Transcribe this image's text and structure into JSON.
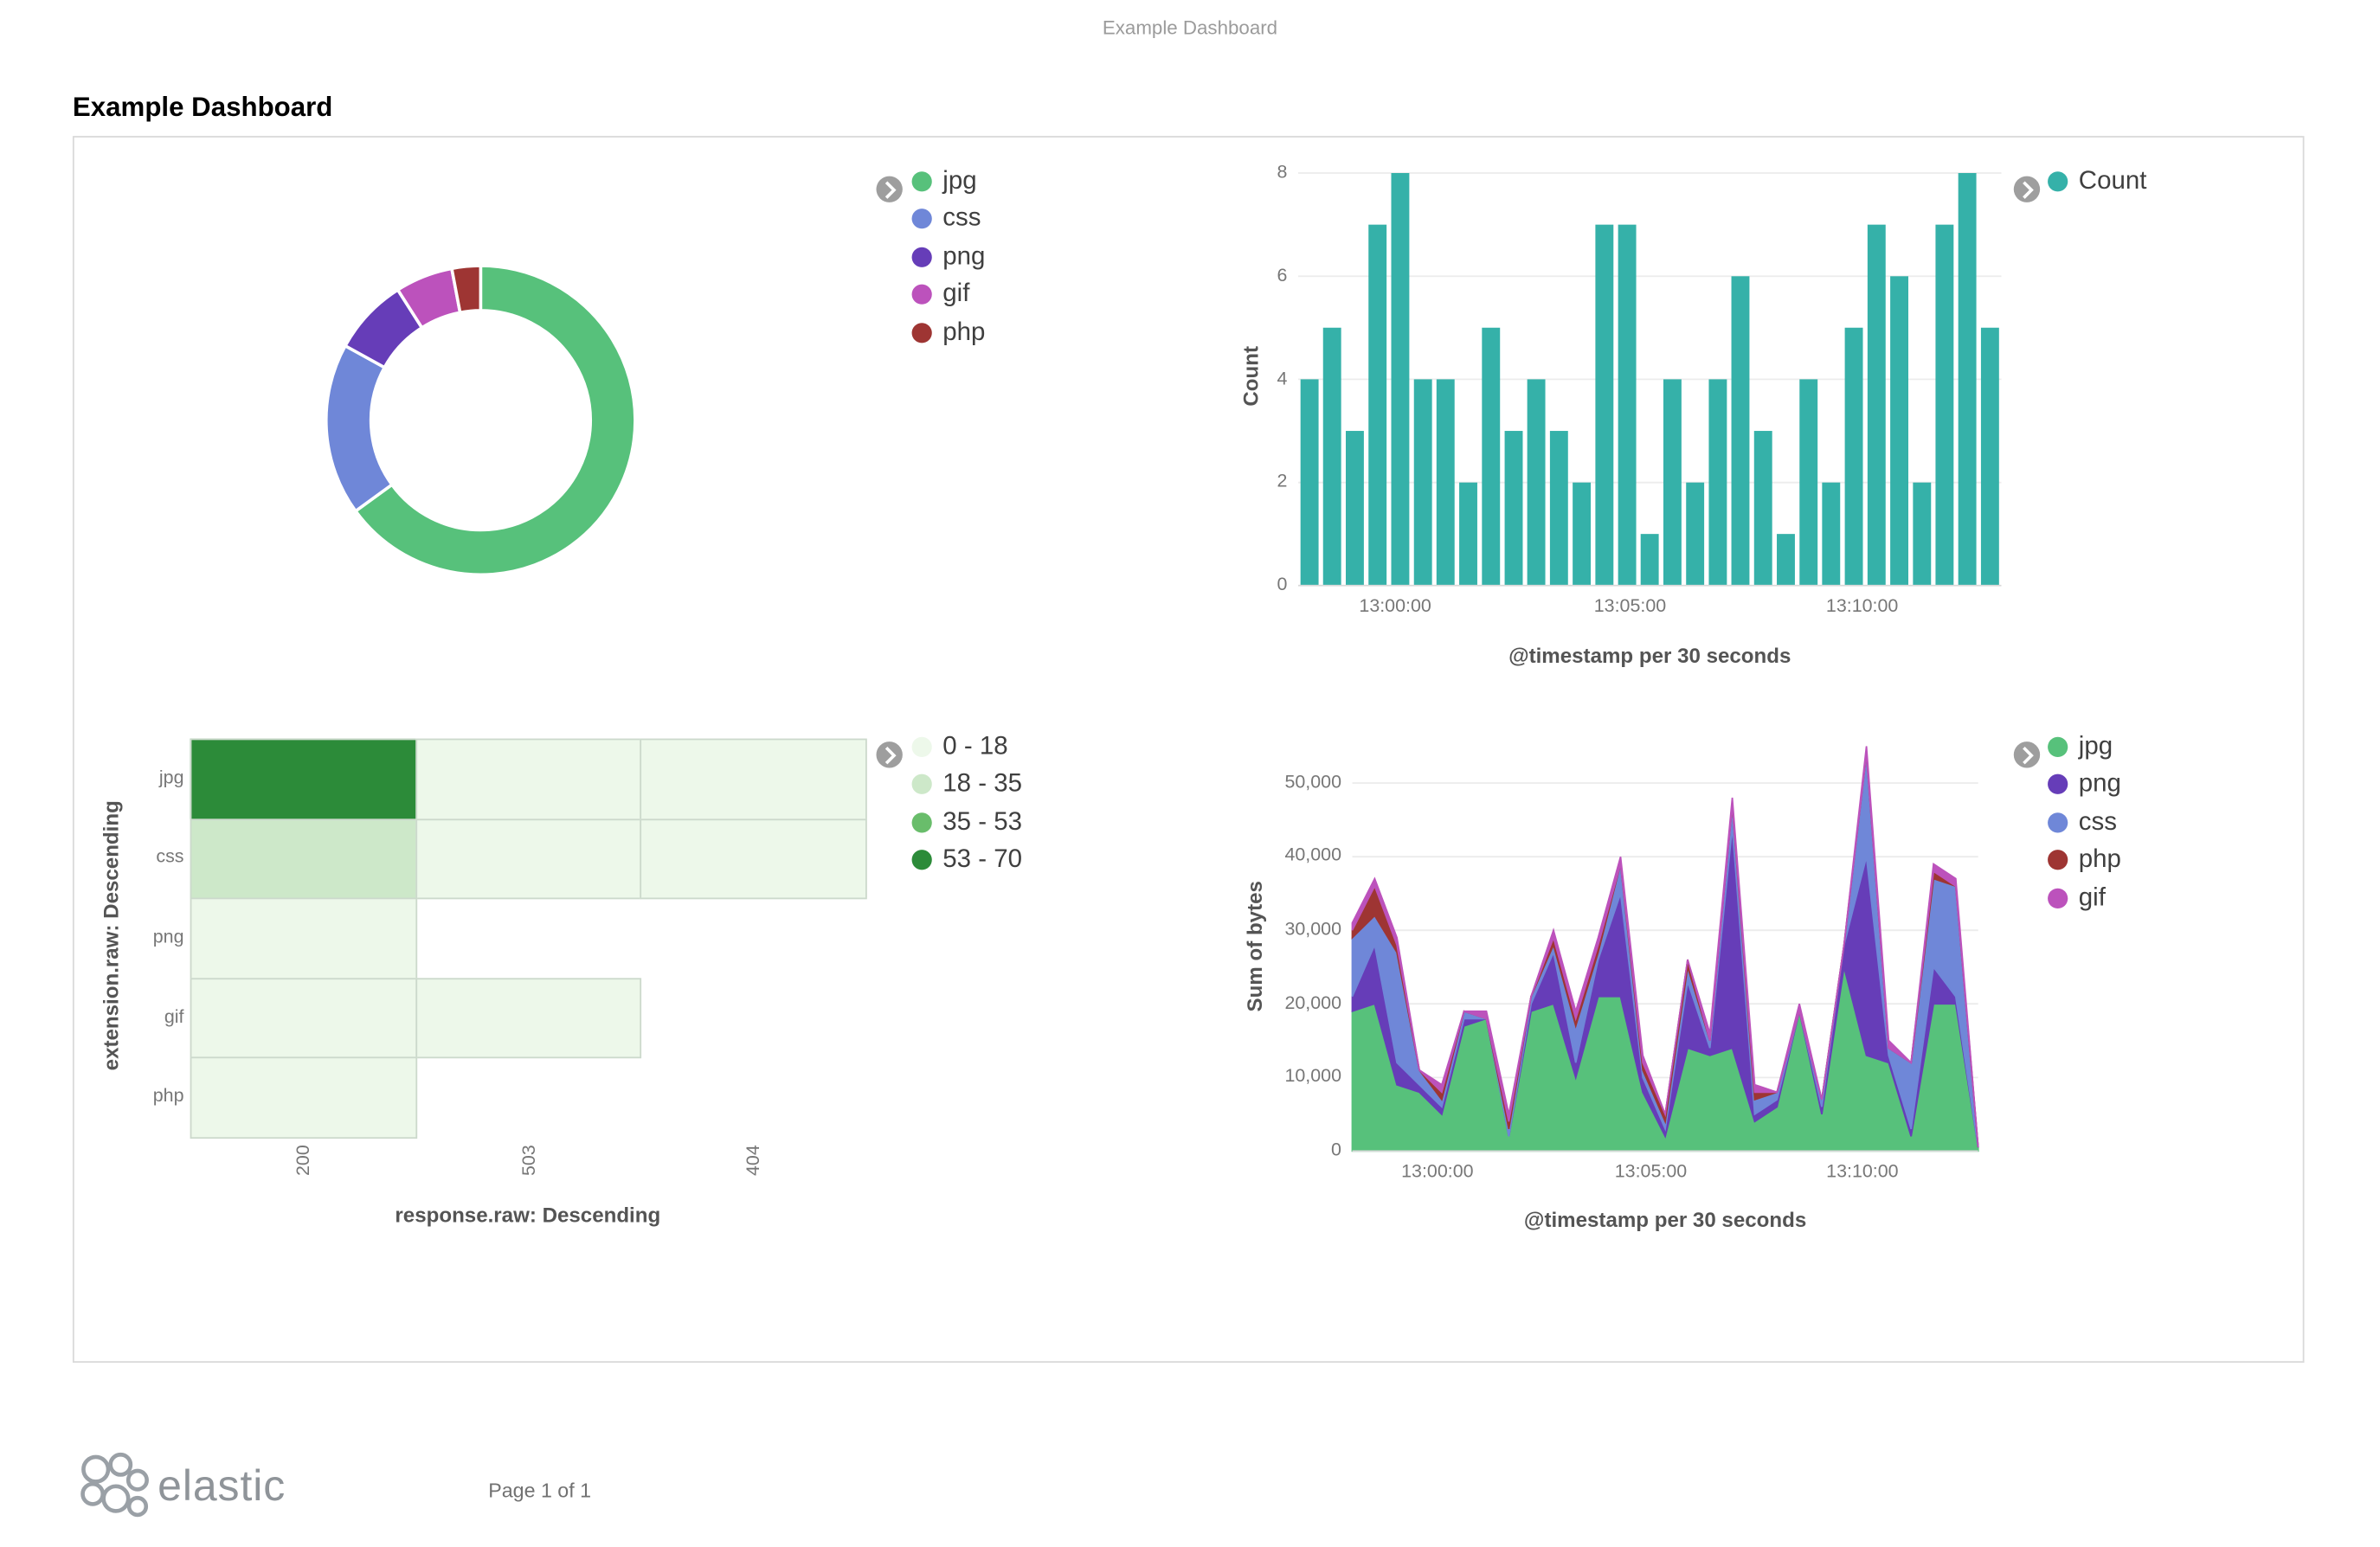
{
  "page": {
    "header_title": "Example Dashboard",
    "title": "Example Dashboard"
  },
  "footer": {
    "brand": "elastic",
    "page_info": "Page 1 of 1"
  },
  "chart_data": [
    {
      "id": "donut",
      "type": "pie",
      "labels": [
        "jpg",
        "css",
        "png",
        "gif",
        "php"
      ],
      "values": [
        65,
        18,
        8,
        6,
        3
      ],
      "colors": [
        "#57c17b",
        "#6f87d8",
        "#663db8",
        "#bc52bc",
        "#9e3533"
      ],
      "inner_radius_ratio": 0.71,
      "legend_position": "right"
    },
    {
      "id": "count-histogram",
      "type": "bar",
      "series_name": "Count",
      "color": "#35b1a9",
      "xlabel": "@timestamp per 30 seconds",
      "ylabel": "Count",
      "ylim": [
        0,
        8
      ],
      "yticks": [
        0,
        2,
        4,
        6,
        8
      ],
      "values": [
        4,
        5,
        3,
        7,
        8,
        4,
        4,
        2,
        5,
        3,
        4,
        3,
        2,
        7,
        7,
        1,
        4,
        2,
        4,
        6,
        3,
        1,
        4,
        2,
        5,
        7,
        6,
        2,
        7,
        8,
        5
      ],
      "x_ticks": [
        {
          "label": "13:00:00",
          "pos": 0.138
        },
        {
          "label": "13:05:00",
          "pos": 0.472
        },
        {
          "label": "13:10:00",
          "pos": 0.802
        }
      ],
      "legend_position": "right"
    },
    {
      "id": "heatmap",
      "type": "heatmap",
      "xlabel": "response.raw: Descending",
      "ylabel": "extension.raw: Descending",
      "rows": [
        "jpg",
        "css",
        "png",
        "gif",
        "php"
      ],
      "cols": [
        "200",
        "503",
        "404"
      ],
      "cells": [
        [
          60,
          5,
          4
        ],
        [
          30,
          8,
          6
        ],
        [
          6,
          null,
          null
        ],
        [
          5,
          3,
          null
        ],
        [
          2,
          null,
          null
        ]
      ],
      "buckets": {
        "labels": [
          "0 - 18",
          "18 - 35",
          "35 - 53",
          "53 - 70"
        ],
        "edges": [
          0,
          18,
          35,
          53,
          70
        ],
        "colors": [
          "#edf8ea",
          "#cde8c9",
          "#69bd6b",
          "#2c8b39"
        ]
      },
      "legend_position": "right"
    },
    {
      "id": "bytes-area",
      "type": "area",
      "stacked": true,
      "xlabel": "@timestamp per 30 seconds",
      "ylabel": "Sum of bytes",
      "ylim": [
        0,
        55000
      ],
      "yticks": [
        0,
        10000,
        20000,
        30000,
        40000,
        50000
      ],
      "ytick_labels": [
        "0",
        "10,000",
        "20,000",
        "30,000",
        "40,000",
        "50,000"
      ],
      "x_ticks": [
        {
          "label": "13:00:00",
          "pos": 0.136
        },
        {
          "label": "13:05:00",
          "pos": 0.477
        },
        {
          "label": "13:10:00",
          "pos": 0.815
        }
      ],
      "series": [
        {
          "name": "jpg",
          "color": "#57c17b",
          "values": [
            19000,
            20000,
            9000,
            8000,
            5000,
            17000,
            18000,
            2000,
            19000,
            20000,
            10000,
            21000,
            21000,
            8000,
            2000,
            14000,
            13000,
            14000,
            4000,
            6000,
            19000,
            5000,
            25000,
            13000,
            12000,
            2000,
            20000,
            20000,
            500
          ]
        },
        {
          "name": "png",
          "color": "#663db8",
          "values": [
            2000,
            8000,
            3000,
            1000,
            1000,
            1000,
            0,
            0,
            1000,
            7000,
            2000,
            5000,
            14000,
            2000,
            1000,
            9000,
            1000,
            30000,
            1000,
            1000,
            0,
            1000,
            3000,
            27000,
            1000,
            1000,
            5000,
            1000,
            0
          ]
        },
        {
          "name": "css",
          "color": "#6f87d8",
          "values": [
            8000,
            4000,
            15000,
            2000,
            1000,
            1000,
            0,
            1000,
            1000,
            1000,
            5000,
            1000,
            4000,
            1000,
            1000,
            2000,
            1000,
            3000,
            2000,
            1000,
            0,
            1000,
            0,
            14000,
            1000,
            9000,
            12000,
            15000,
            0
          ]
        },
        {
          "name": "php",
          "color": "#9e3533",
          "values": [
            1000,
            4000,
            1000,
            0,
            1000,
            0,
            0,
            1000,
            0,
            1000,
            1000,
            1000,
            0,
            1000,
            1000,
            1000,
            0,
            0,
            1000,
            0,
            0,
            0,
            0,
            0,
            0,
            0,
            1000,
            0,
            0
          ]
        },
        {
          "name": "gif",
          "color": "#bc52bc",
          "values": [
            1000,
            1000,
            1000,
            0,
            1000,
            0,
            1000,
            1000,
            0,
            1000,
            1000,
            1000,
            1000,
            1000,
            0,
            0,
            1000,
            1000,
            1000,
            0,
            1000,
            0,
            0,
            1000,
            1000,
            0,
            1000,
            1000,
            0
          ]
        }
      ],
      "legend_position": "right"
    }
  ]
}
